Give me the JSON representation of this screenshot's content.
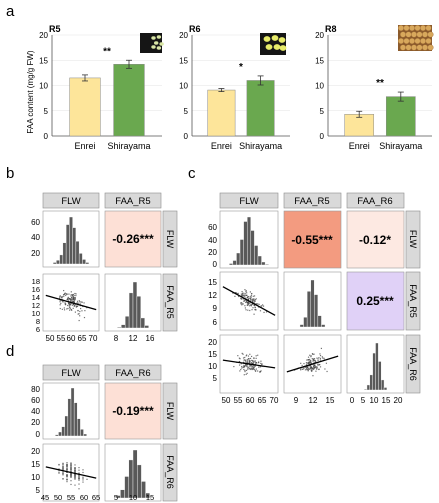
{
  "panel_letters": {
    "a": "a",
    "b": "b",
    "c": "c",
    "d": "d"
  },
  "panel_a": {
    "ylabel": "FAA content (mg/g FW)",
    "yticks": [
      "0",
      "5",
      "10",
      "15",
      "20"
    ],
    "charts": [
      {
        "stage": "R5",
        "sig": "**",
        "bars": [
          {
            "label": "Enrei",
            "value": 11.5,
            "err": 0.6,
            "color": "#fde59a"
          },
          {
            "label": "Shirayama",
            "value": 14.2,
            "err": 0.8,
            "color": "#6aa84f"
          }
        ]
      },
      {
        "stage": "R6",
        "sig": "*",
        "bars": [
          {
            "label": "Enrei",
            "value": 9.1,
            "err": 0.3,
            "color": "#fde59a"
          },
          {
            "label": "Shirayama",
            "value": 11.0,
            "err": 0.9,
            "color": "#6aa84f"
          }
        ]
      },
      {
        "stage": "R8",
        "sig": "**",
        "bars": [
          {
            "label": "Enrei",
            "value": 4.3,
            "err": 0.6,
            "color": "#fde59a"
          },
          {
            "label": "Shirayama",
            "value": 7.8,
            "err": 0.9,
            "color": "#6aa84f"
          }
        ]
      }
    ]
  },
  "panel_b": {
    "headers": [
      "FLW",
      "FAA_R5"
    ],
    "row_labels": [
      "FLW",
      "FAA_R5"
    ],
    "corr": {
      "text": "-0.26***",
      "color": "#fde0d6"
    },
    "hist_flw": {
      "yticks": [
        "20",
        "40",
        "60"
      ]
    },
    "scatter": {
      "xticks": [
        "50",
        "55",
        "60",
        "65",
        "70"
      ],
      "yticks": [
        "6",
        "8",
        "10",
        "12",
        "14",
        "16",
        "18"
      ]
    },
    "hist_faa": {
      "xticks": [
        "8",
        "12",
        "16"
      ]
    }
  },
  "panel_c": {
    "headers": [
      "FLW",
      "FAA_R5",
      "FAA_R6"
    ],
    "row_labels": [
      "FLW",
      "FAA_R5",
      "FAA_R6"
    ],
    "corrs": [
      {
        "text": "-0.55***",
        "color": "#f39b80"
      },
      {
        "text": "-0.12*",
        "color": "#fde9e2"
      },
      {
        "text": "0.25***",
        "color": "#e0d1f7"
      }
    ],
    "hist_flw": {
      "yticks": [
        "0",
        "20",
        "40",
        "60"
      ]
    },
    "scatter_r5": {
      "xticks": [
        "50",
        "55",
        "60",
        "65",
        "70"
      ],
      "yticks": [
        "6",
        "9",
        "12",
        "15"
      ]
    },
    "scatter_r6_flw": {
      "xticks": [],
      "yticks": [
        "5",
        "10",
        "15",
        "20"
      ]
    },
    "scatter_r6_r5": {
      "xticks": [
        "9",
        "12",
        "15"
      ]
    },
    "hist_r6": {
      "xticks": [
        "0",
        "5",
        "10",
        "15",
        "20"
      ]
    }
  },
  "panel_d": {
    "headers": [
      "FLW",
      "FAA_R6"
    ],
    "row_labels": [
      "FLW",
      "FAA_R6"
    ],
    "corr": {
      "text": "-0.19***",
      "color": "#fde0d6"
    },
    "hist_flw": {
      "yticks": [
        "0",
        "20",
        "40",
        "60",
        "80"
      ]
    },
    "scatter": {
      "xticks": [
        "45",
        "50",
        "55",
        "60",
        "65"
      ],
      "yticks": [
        "5",
        "10",
        "15",
        "20"
      ]
    },
    "hist_faa": {
      "xticks": [
        "5",
        "10",
        "15"
      ]
    }
  }
}
